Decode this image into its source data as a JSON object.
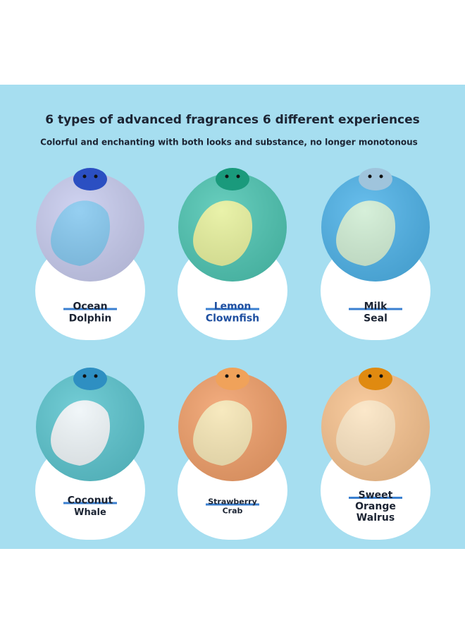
{
  "header": {
    "title": "6 types of advanced fragrances 6 different experiences",
    "subtitle": "Colorful and enchanting with both looks and substance, no longer monotonous"
  },
  "products": [
    {
      "lines": [
        "Ocean",
        "Dolphin"
      ]
    },
    {
      "lines": [
        "Lemon",
        "Clownfish"
      ]
    },
    {
      "lines": [
        "Milk",
        "Seal"
      ]
    },
    {
      "lines": [
        "Coconut",
        "Whale"
      ]
    },
    {
      "lines": [
        "Strawberry",
        "Crab"
      ]
    },
    {
      "lines": [
        "Sweet",
        "Orange",
        "Walrus"
      ]
    }
  ]
}
